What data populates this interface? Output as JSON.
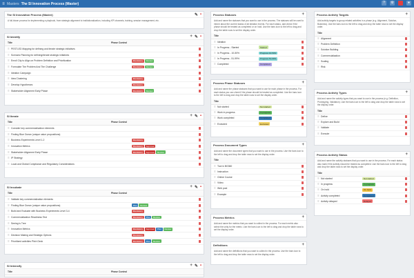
{
  "topbar": {
    "crumb": "Masters",
    "title": "The SI Innovation Process (Master)"
  },
  "colors": {
    "mandatory": "#d9534f",
    "review": "#5cb85c",
    "approval": "#c9302c",
    "pilot": "#337ab7",
    "started": "#c8e6a0",
    "progress": "#7fd4d4",
    "completed": "#b3a7e8",
    "notstarted": "#d7e8a0",
    "ongoing": "#f0c040",
    "delayed": "#f06a6a",
    "excluded": "#f0d060"
  },
  "master": {
    "title": "The SI Innovation Process (Master)",
    "desc": "A full-blown process for implementing a playbook, from strategic alignment to institutionalization, including KPI channels, training, session management, etc."
  },
  "identify": {
    "title": "SI Identify",
    "col1": "Title",
    "col2": "Phase Control",
    "rows": [
      {
        "name": "PESTLED Mapping for defining and iterate strategic initiatives",
        "tags": []
      },
      {
        "name": "Scenario Planning for defining/iterate strategic initiatives",
        "tags": []
      },
      {
        "name": "Enroll City to Align on Problem Definition and Prioritization",
        "tags": [
          "Mandatory",
          "Review"
        ]
      },
      {
        "name": "Formulate The Problem And The Challenge",
        "tags": [
          "Mandatory",
          "Review"
        ]
      },
      {
        "name": "Ideation Campaign",
        "tags": []
      },
      {
        "name": "Idea Clustering",
        "tags": [
          "Mandatory"
        ]
      },
      {
        "name": "Develop Hypotheses",
        "tags": [
          "Mandatory"
        ]
      },
      {
        "name": "Stakeholder Alignment Early Phase",
        "tags": [
          "Mandatory",
          "Review"
        ]
      }
    ]
  },
  "iterate": {
    "title": "SI Iterate",
    "col1": "Title",
    "col2": "Phase Control",
    "rows": [
      {
        "name": "Consider key commercialization elements",
        "tags": []
      },
      {
        "name": "Finding Blue Ocean (unique value propositions)",
        "tags": []
      },
      {
        "name": "Business Experiments Level 1-2",
        "tags": [
          "Mandatory"
        ]
      },
      {
        "name": "Innovation Metrics",
        "tags": [
          "Mandatory",
          "Approval"
        ]
      },
      {
        "name": "Stakeholder Alignment Early Phase",
        "tags": [
          "Mandatory",
          "Approval",
          "Review"
        ]
      },
      {
        "name": "IP Strategy",
        "tags": []
      },
      {
        "name": "Local and Global Compliance and Regulatory Considerations",
        "tags": []
      }
    ]
  },
  "incubate": {
    "title": "SI Incubate",
    "col1": "Title",
    "col2": "Phase Control",
    "rows": [
      {
        "name": "Validate key commercialization elements",
        "tags": []
      },
      {
        "name": "Finding Blue Ocean (unique value propositions)",
        "tags": [
          "Pilot",
          "Review"
        ]
      },
      {
        "name": "Build and Evaluate with Business Experiments Level 3-4",
        "tags": [
          "Mandatory"
        ]
      },
      {
        "name": "Commercialization Readiness Test",
        "tags": [
          "Mandatory",
          "Pilot",
          "Review"
        ]
      },
      {
        "name": "Seeing is Tree",
        "tags": []
      },
      {
        "name": "Innovation Metrics",
        "tags": [
          "Mandatory",
          "Approval",
          "Pilot",
          "Review"
        ]
      },
      {
        "name": "Decision Making and Strategic Options",
        "tags": [
          "Mandatory"
        ]
      },
      {
        "name": "Prioritized activities Pitch Deck",
        "tags": [
          "Mandatory",
          "Pilot",
          "Review"
        ]
      }
    ]
  },
  "intensify": {
    "title": "SI Intensify",
    "col1": "Title",
    "col2": "Phase Control"
  },
  "statuses": {
    "title": "Process Statuses",
    "desc": "Add and name the statuses that you want to use in the process. The statuses will be used to inform about the current status of all ideation events. For each status, add check if the phase should be treated as completed or on hold. Use the bars icon to the left to drag and drop the table rows to set the display order.",
    "col": "Title",
    "rows": [
      {
        "name": "Ideation",
        "badge": ""
      },
      {
        "name": "In Progress - Started",
        "badge": "Started",
        "c": "started"
      },
      {
        "name": "In Progress - 10-50%",
        "badge": "Progress 10-50%",
        "c": "progress"
      },
      {
        "name": "In Progress - 51-99%",
        "badge": "Progress 51-99%",
        "c": "progress"
      },
      {
        "name": "Completed",
        "badge": "Completed",
        "c": "completed"
      }
    ]
  },
  "phaseStatuses": {
    "title": "Process Phase Statuses",
    "desc": "Add and name the phase statuses that you want to use for each phase in the process. For each status you can check if the phase should be treated as completed. Use the bars icon to the left to drag and drop the table rows to set the display order.",
    "col": "Title",
    "rows": [
      {
        "name": "Not started",
        "badge": "Not started",
        "c": "notstarted"
      },
      {
        "name": "Work in progress",
        "badge": "In progress",
        "c": "review"
      },
      {
        "name": "Work completed",
        "badge": "Completed",
        "c": "pilot"
      },
      {
        "name": "Excluded",
        "badge": "Excluded",
        "c": "excluded"
      }
    ]
  },
  "docTypes": {
    "title": "Process Document Types",
    "desc": "Add and name the document types that you want to use in the process. Use the bars icon to the left to drag and drop the table rows to set the display order.",
    "col": "Title",
    "rows": [
      {
        "name": "Tool in BG360"
      },
      {
        "name": "Instruction"
      },
      {
        "name": "Online Course"
      },
      {
        "name": "Video"
      },
      {
        "name": "Web post"
      },
      {
        "name": "Example"
      }
    ]
  },
  "metrics": {
    "title": "Process Metrics",
    "desc": "Add and name the metrics that you want to collect in the process. For each metric also select the unity for the metric. Use the bars icon to the left to drag and drop the table rows to set the display order."
  },
  "definitions": {
    "title": "Definitions",
    "desc": "Add and name the definitions that you want to collect in the process. Use the bars icon to the left to drag and drop the table rows to set the display order."
  },
  "targets": {
    "title": "Process Activity Targets",
    "desc": "Add activity targets to group related activities in a phase (e.g. Alignment, Solution, Business). Use the bars icon to the left to drag and drop the table rows to set the display order.",
    "col": "Title",
    "rows": [
      {
        "name": "Alignment"
      },
      {
        "name": "Problem Definition"
      },
      {
        "name": "Solution Building"
      },
      {
        "name": "Commercialisation"
      },
      {
        "name": "Scaling"
      },
      {
        "name": "Risk"
      }
    ]
  },
  "types": {
    "title": "Process Activity Types",
    "desc": "Add and name the activity types that you want to use in the process (e.g. Definition, Prototyping, Validation). Use the bars icon to the left to drag and drop the table rows to set the display order.",
    "col": "Title",
    "rows": [
      {
        "name": "Define"
      },
      {
        "name": "Explore and Build"
      },
      {
        "name": "Validate"
      },
      {
        "name": "Execute"
      }
    ]
  },
  "actStatus": {
    "title": "Process Activity Status",
    "desc": "Add and name the activity statuses that you want to use in the process. For each status also mark if the activity should be treated as completed. Use the bars icon to the left to drag and drop the table rows to set the display order.",
    "col": "Title",
    "rows": [
      {
        "name": "Not started",
        "badge": "Not started",
        "c": "notstarted"
      },
      {
        "name": "In progress",
        "badge": "In progress",
        "c": "review"
      },
      {
        "name": "On hold",
        "badge": "On hold",
        "c": "ongoing"
      },
      {
        "name": "Activity completed",
        "badge": "Completed",
        "c": "pilot"
      },
      {
        "name": "Activity delayed",
        "badge": "Delayed",
        "c": "delayed"
      }
    ]
  }
}
